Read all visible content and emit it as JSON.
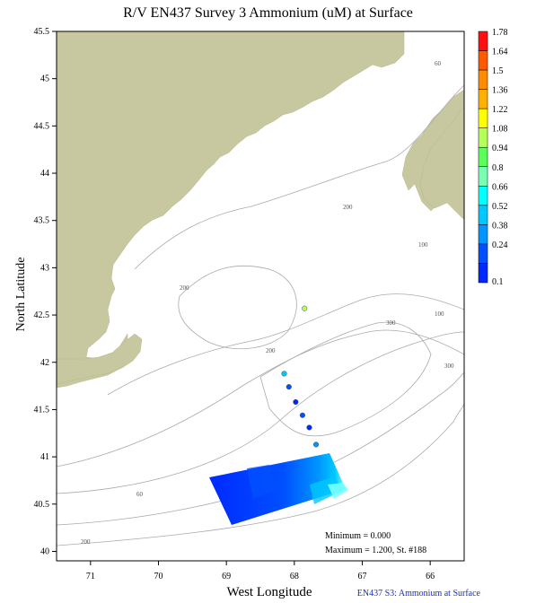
{
  "title": "R/V EN437 Survey 3 Ammonium (uM) at Surface",
  "xlabel": "West Longitude",
  "ylabel": "North Latitude",
  "footer": "EN437 S3: Ammonium at Surface",
  "x_ticks": [
    "71",
    "70",
    "69",
    "68",
    "67",
    "66"
  ],
  "y_ticks": [
    "45.5",
    "45",
    "44.5",
    "44",
    "43.5",
    "43",
    "42.5",
    "42",
    "41.5",
    "41",
    "40.5",
    "40"
  ],
  "contour_labels": [
    "60",
    "200",
    "100",
    "200",
    "300",
    "100",
    "300",
    "60",
    "200",
    "200"
  ],
  "stats": {
    "minimum": "Minimum = 0.000",
    "maximum": "Maximum = 1.200, St. #188"
  },
  "colorbar": {
    "labels": [
      "1.78",
      "1.64",
      "1.5",
      "1.36",
      "1.22",
      "1.08",
      "0.94",
      "0.8",
      "0.66",
      "0.52",
      "0.38",
      "0.24",
      "0.1"
    ],
    "colors": [
      "#ff1010",
      "#ff5a00",
      "#ff8c00",
      "#ffb000",
      "#ffff00",
      "#b4ff5a",
      "#5aff5a",
      "#78ffb4",
      "#00ffff",
      "#00c8ff",
      "#0096ff",
      "#0050ff",
      "#0028ff"
    ]
  },
  "colors": {
    "land": "#c8c8a0",
    "sea": "#ffffff",
    "contour": "#aaaaaa"
  },
  "chart_data": {
    "type": "scatter",
    "title": "R/V EN437 Survey 3 Ammonium (uM) at Surface",
    "xlabel": "West Longitude",
    "ylabel": "North Latitude",
    "xlim": [
      71.5,
      65.5
    ],
    "ylim": [
      39.9,
      45.5
    ],
    "stations": [
      {
        "lon": 67.85,
        "lat": 42.57,
        "value": 1.2
      },
      {
        "lon": 68.15,
        "lat": 41.88,
        "value": 0.6
      },
      {
        "lon": 68.08,
        "lat": 41.74,
        "value": 0.3
      },
      {
        "lon": 67.98,
        "lat": 41.58,
        "value": 0.2
      },
      {
        "lon": 67.88,
        "lat": 41.44,
        "value": 0.3
      },
      {
        "lon": 67.78,
        "lat": 41.31,
        "value": 0.2
      },
      {
        "lon": 67.68,
        "lat": 41.13,
        "value": 0.4
      }
    ]
  }
}
